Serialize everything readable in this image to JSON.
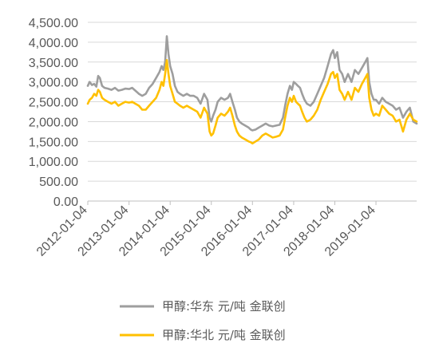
{
  "chart_data": {
    "type": "line",
    "title": "",
    "xlabel": "",
    "ylabel": "",
    "ylim": [
      0,
      4500
    ],
    "xlim": [
      "2012-01-04",
      "2019-12-31"
    ],
    "y_ticks": [
      "0.00",
      "500.00",
      "1,000.00",
      "1,500.00",
      "2,000.00",
      "2,500.00",
      "3,000.00",
      "3,500.00",
      "4,000.00",
      "4,500.00"
    ],
    "y_tick_values": [
      0,
      500,
      1000,
      1500,
      2000,
      2500,
      3000,
      3500,
      4000,
      4500
    ],
    "x_ticks": [
      "2012-01-04",
      "2013-01-04",
      "2014-01-04",
      "2015-01-04",
      "2016-01-04",
      "2017-01-04",
      "2018-01-04",
      "2019-01-04"
    ],
    "grid": "horizontal",
    "legend_position": "bottom",
    "series": [
      {
        "name": "甲醇:华东 元/吨 金联创",
        "color": "#9e9e9e",
        "points": [
          [
            "2012-01-04",
            2900
          ],
          [
            "2012-01-20",
            3000
          ],
          [
            "2012-02-10",
            2920
          ],
          [
            "2012-03-01",
            2950
          ],
          [
            "2012-03-20",
            2880
          ],
          [
            "2012-04-05",
            3150
          ],
          [
            "2012-04-20",
            3100
          ],
          [
            "2012-05-10",
            2900
          ],
          [
            "2012-06-01",
            2850
          ],
          [
            "2012-07-01",
            2830
          ],
          [
            "2012-08-01",
            2800
          ],
          [
            "2012-09-01",
            2850
          ],
          [
            "2012-10-01",
            2780
          ],
          [
            "2012-11-01",
            2800
          ],
          [
            "2012-12-01",
            2830
          ],
          [
            "2013-01-04",
            2820
          ],
          [
            "2013-02-01",
            2850
          ],
          [
            "2013-03-01",
            2780
          ],
          [
            "2013-04-01",
            2700
          ],
          [
            "2013-05-01",
            2650
          ],
          [
            "2013-06-01",
            2700
          ],
          [
            "2013-07-01",
            2850
          ],
          [
            "2013-08-01",
            2950
          ],
          [
            "2013-09-01",
            3100
          ],
          [
            "2013-10-01",
            3250
          ],
          [
            "2013-10-20",
            3400
          ],
          [
            "2013-11-05",
            3300
          ],
          [
            "2013-11-20",
            3500
          ],
          [
            "2013-12-05",
            4150
          ],
          [
            "2013-12-20",
            3700
          ],
          [
            "2014-01-04",
            3400
          ],
          [
            "2014-01-25",
            3200
          ],
          [
            "2014-02-15",
            2900
          ],
          [
            "2014-03-10",
            2750
          ],
          [
            "2014-04-01",
            2700
          ],
          [
            "2014-05-01",
            2650
          ],
          [
            "2014-06-01",
            2700
          ],
          [
            "2014-07-01",
            2650
          ],
          [
            "2014-08-01",
            2650
          ],
          [
            "2014-09-01",
            2600
          ],
          [
            "2014-10-01",
            2450
          ],
          [
            "2014-11-01",
            2700
          ],
          [
            "2014-12-01",
            2550
          ],
          [
            "2014-12-20",
            2100
          ],
          [
            "2015-01-04",
            2000
          ],
          [
            "2015-01-20",
            2150
          ],
          [
            "2015-02-10",
            2300
          ],
          [
            "2015-03-01",
            2500
          ],
          [
            "2015-04-01",
            2600
          ],
          [
            "2015-05-01",
            2550
          ],
          [
            "2015-06-01",
            2600
          ],
          [
            "2015-06-20",
            2700
          ],
          [
            "2015-07-10",
            2500
          ],
          [
            "2015-08-01",
            2300
          ],
          [
            "2015-08-20",
            2100
          ],
          [
            "2015-09-10",
            2000
          ],
          [
            "2015-10-01",
            1950
          ],
          [
            "2015-11-01",
            1900
          ],
          [
            "2015-12-01",
            1850
          ],
          [
            "2015-12-20",
            1800
          ],
          [
            "2016-01-04",
            1780
          ],
          [
            "2016-02-01",
            1800
          ],
          [
            "2016-03-01",
            1850
          ],
          [
            "2016-04-01",
            1900
          ],
          [
            "2016-05-01",
            1950
          ],
          [
            "2016-06-01",
            1900
          ],
          [
            "2016-07-01",
            1880
          ],
          [
            "2016-08-01",
            1900
          ],
          [
            "2016-09-01",
            1920
          ],
          [
            "2016-10-01",
            2100
          ],
          [
            "2016-10-20",
            2400
          ],
          [
            "2016-11-10",
            2700
          ],
          [
            "2016-12-01",
            2900
          ],
          [
            "2016-12-20",
            2800
          ],
          [
            "2017-01-04",
            3000
          ],
          [
            "2017-01-25",
            2950
          ],
          [
            "2017-02-10",
            2900
          ],
          [
            "2017-03-01",
            2850
          ],
          [
            "2017-03-20",
            2700
          ],
          [
            "2017-04-10",
            2550
          ],
          [
            "2017-05-01",
            2450
          ],
          [
            "2017-06-01",
            2400
          ],
          [
            "2017-07-01",
            2500
          ],
          [
            "2017-08-01",
            2700
          ],
          [
            "2017-09-01",
            2900
          ],
          [
            "2017-10-01",
            3100
          ],
          [
            "2017-11-01",
            3400
          ],
          [
            "2017-12-01",
            3700
          ],
          [
            "2017-12-20",
            3800
          ],
          [
            "2018-01-04",
            3600
          ],
          [
            "2018-01-25",
            3750
          ],
          [
            "2018-02-15",
            3300
          ],
          [
            "2018-03-10",
            3200
          ],
          [
            "2018-04-01",
            3000
          ],
          [
            "2018-05-01",
            3200
          ],
          [
            "2018-06-01",
            3000
          ],
          [
            "2018-07-01",
            3300
          ],
          [
            "2018-08-01",
            3200
          ],
          [
            "2018-09-01",
            3350
          ],
          [
            "2018-10-01",
            3500
          ],
          [
            "2018-10-20",
            3600
          ],
          [
            "2018-11-05",
            3000
          ],
          [
            "2018-11-25",
            2700
          ],
          [
            "2018-12-15",
            2550
          ],
          [
            "2019-01-04",
            2550
          ],
          [
            "2019-02-01",
            2450
          ],
          [
            "2019-03-01",
            2600
          ],
          [
            "2019-04-01",
            2500
          ],
          [
            "2019-05-01",
            2450
          ],
          [
            "2019-06-01",
            2400
          ],
          [
            "2019-07-01",
            2300
          ],
          [
            "2019-08-01",
            2350
          ],
          [
            "2019-09-01",
            2100
          ],
          [
            "2019-10-01",
            2250
          ],
          [
            "2019-11-01",
            2350
          ],
          [
            "2019-12-01",
            2000
          ],
          [
            "2019-12-31",
            1950
          ]
        ]
      },
      {
        "name": "甲醇:华北 元/吨 金联创",
        "color": "#ffc000",
        "points": [
          [
            "2012-01-04",
            2450
          ],
          [
            "2012-01-20",
            2550
          ],
          [
            "2012-02-10",
            2600
          ],
          [
            "2012-03-01",
            2700
          ],
          [
            "2012-03-20",
            2650
          ],
          [
            "2012-04-05",
            2800
          ],
          [
            "2012-04-20",
            2750
          ],
          [
            "2012-05-10",
            2600
          ],
          [
            "2012-06-01",
            2550
          ],
          [
            "2012-07-01",
            2500
          ],
          [
            "2012-08-01",
            2450
          ],
          [
            "2012-09-01",
            2500
          ],
          [
            "2012-10-01",
            2400
          ],
          [
            "2012-11-01",
            2450
          ],
          [
            "2012-12-01",
            2500
          ],
          [
            "2013-01-04",
            2480
          ],
          [
            "2013-02-01",
            2500
          ],
          [
            "2013-03-01",
            2450
          ],
          [
            "2013-04-01",
            2400
          ],
          [
            "2013-05-01",
            2300
          ],
          [
            "2013-06-01",
            2300
          ],
          [
            "2013-07-01",
            2400
          ],
          [
            "2013-08-01",
            2500
          ],
          [
            "2013-09-01",
            2600
          ],
          [
            "2013-10-01",
            2800
          ],
          [
            "2013-10-20",
            3000
          ],
          [
            "2013-11-05",
            2900
          ],
          [
            "2013-11-20",
            3200
          ],
          [
            "2013-12-05",
            3550
          ],
          [
            "2013-12-20",
            3200
          ],
          [
            "2014-01-04",
            2900
          ],
          [
            "2014-01-25",
            2700
          ],
          [
            "2014-02-15",
            2500
          ],
          [
            "2014-03-10",
            2450
          ],
          [
            "2014-04-01",
            2400
          ],
          [
            "2014-05-01",
            2350
          ],
          [
            "2014-06-01",
            2400
          ],
          [
            "2014-07-01",
            2350
          ],
          [
            "2014-08-01",
            2300
          ],
          [
            "2014-09-01",
            2250
          ],
          [
            "2014-10-01",
            2100
          ],
          [
            "2014-11-01",
            2350
          ],
          [
            "2014-12-01",
            2200
          ],
          [
            "2014-12-20",
            1750
          ],
          [
            "2015-01-04",
            1650
          ],
          [
            "2015-01-20",
            1700
          ],
          [
            "2015-02-10",
            1900
          ],
          [
            "2015-03-01",
            2100
          ],
          [
            "2015-04-01",
            2200
          ],
          [
            "2015-05-01",
            2150
          ],
          [
            "2015-06-01",
            2250
          ],
          [
            "2015-06-20",
            2350
          ],
          [
            "2015-07-10",
            2150
          ],
          [
            "2015-08-01",
            1900
          ],
          [
            "2015-08-20",
            1750
          ],
          [
            "2015-09-10",
            1650
          ],
          [
            "2015-10-01",
            1600
          ],
          [
            "2015-11-01",
            1550
          ],
          [
            "2015-12-01",
            1500
          ],
          [
            "2015-12-20",
            1480
          ],
          [
            "2016-01-04",
            1450
          ],
          [
            "2016-02-01",
            1500
          ],
          [
            "2016-03-01",
            1550
          ],
          [
            "2016-04-01",
            1650
          ],
          [
            "2016-05-01",
            1700
          ],
          [
            "2016-06-01",
            1650
          ],
          [
            "2016-07-01",
            1600
          ],
          [
            "2016-08-01",
            1620
          ],
          [
            "2016-09-01",
            1650
          ],
          [
            "2016-10-01",
            1800
          ],
          [
            "2016-10-20",
            2100
          ],
          [
            "2016-11-10",
            2400
          ],
          [
            "2016-12-01",
            2600
          ],
          [
            "2016-12-20",
            2500
          ],
          [
            "2017-01-04",
            2650
          ],
          [
            "2017-01-25",
            2500
          ],
          [
            "2017-02-10",
            2450
          ],
          [
            "2017-03-01",
            2400
          ],
          [
            "2017-03-20",
            2250
          ],
          [
            "2017-04-10",
            2100
          ],
          [
            "2017-05-01",
            2000
          ],
          [
            "2017-06-01",
            2050
          ],
          [
            "2017-07-01",
            2150
          ],
          [
            "2017-08-01",
            2300
          ],
          [
            "2017-09-01",
            2550
          ],
          [
            "2017-10-01",
            2750
          ],
          [
            "2017-11-01",
            2950
          ],
          [
            "2017-12-01",
            3200
          ],
          [
            "2017-12-20",
            3250
          ],
          [
            "2018-01-04",
            3100
          ],
          [
            "2018-01-25",
            3200
          ],
          [
            "2018-02-15",
            2800
          ],
          [
            "2018-03-10",
            2700
          ],
          [
            "2018-04-01",
            2550
          ],
          [
            "2018-05-01",
            2750
          ],
          [
            "2018-06-01",
            2550
          ],
          [
            "2018-07-01",
            2850
          ],
          [
            "2018-08-01",
            2750
          ],
          [
            "2018-09-01",
            2950
          ],
          [
            "2018-10-01",
            3100
          ],
          [
            "2018-10-20",
            3200
          ],
          [
            "2018-11-05",
            2600
          ],
          [
            "2018-11-25",
            2300
          ],
          [
            "2018-12-15",
            2150
          ],
          [
            "2019-01-04",
            2200
          ],
          [
            "2019-02-01",
            2150
          ],
          [
            "2019-03-01",
            2400
          ],
          [
            "2019-04-01",
            2300
          ],
          [
            "2019-05-01",
            2200
          ],
          [
            "2019-06-01",
            2150
          ],
          [
            "2019-07-01",
            2000
          ],
          [
            "2019-08-01",
            2050
          ],
          [
            "2019-09-01",
            1750
          ],
          [
            "2019-10-01",
            2050
          ],
          [
            "2019-11-01",
            2200
          ],
          [
            "2019-12-01",
            2050
          ],
          [
            "2019-12-31",
            2000
          ]
        ]
      }
    ]
  }
}
